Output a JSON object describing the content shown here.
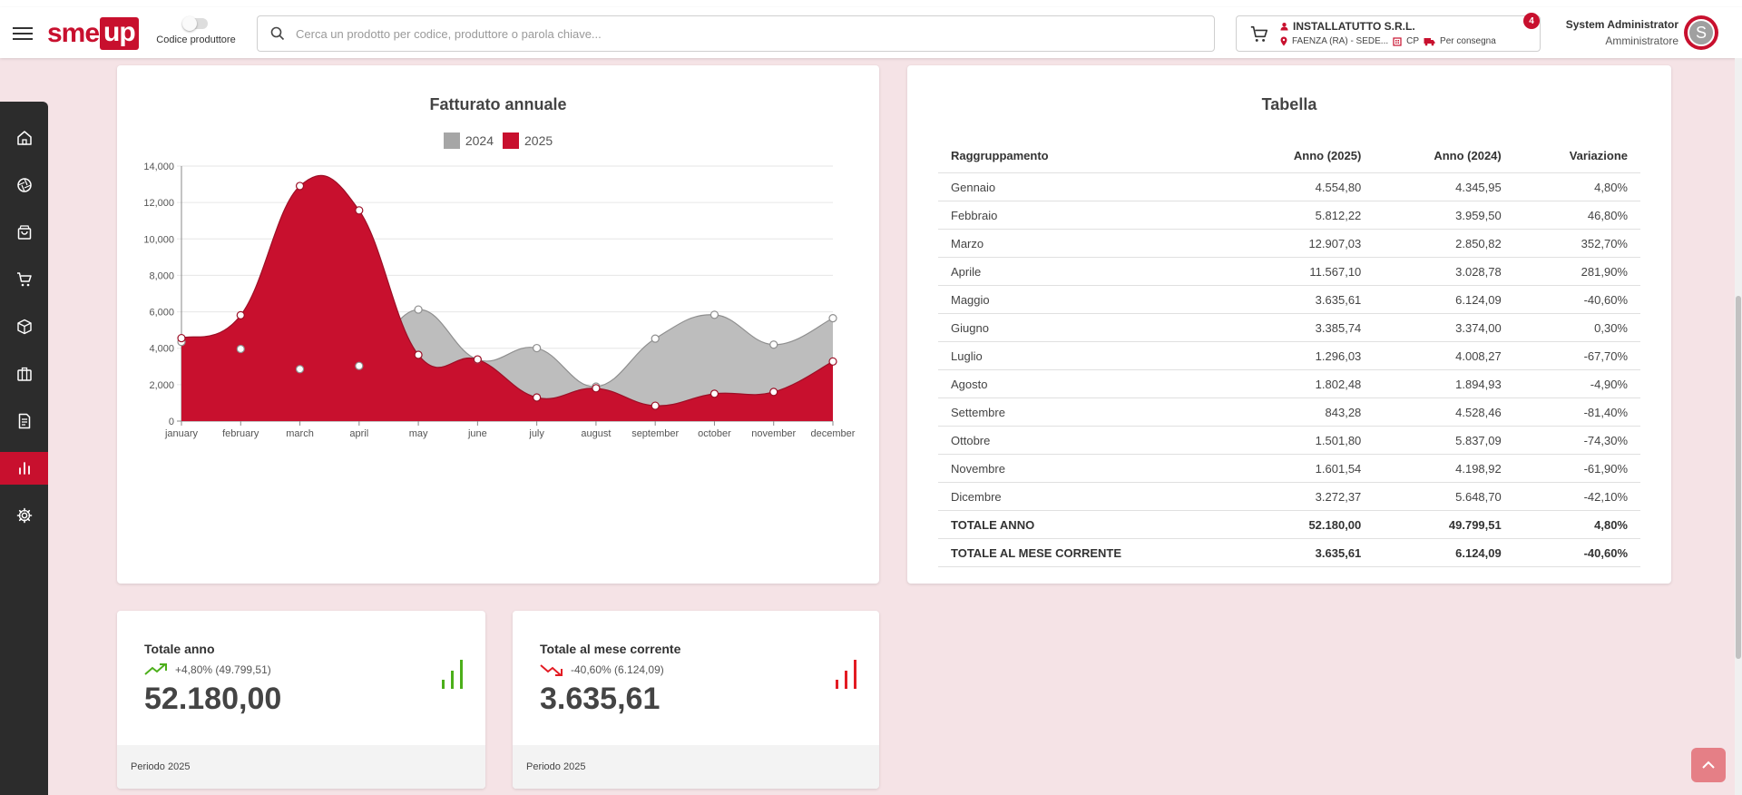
{
  "header": {
    "logo_left": "sme",
    "logo_right": "up",
    "toggle_label": "Codice produttore",
    "search_placeholder": "Cerca un prodotto per codice, produttore o parola chiave...",
    "customer_name": "INSTALLATUTTO S.R.L.",
    "customer_location": "FAENZA (RA) - SEDE...",
    "customer_code": "CP",
    "delivery_label": "Per consegna",
    "cart_count": "4",
    "user_name": "System Administrator",
    "user_role": "Amministratore",
    "avatar_letter": "S"
  },
  "sidebar": {
    "items": [
      "home-icon",
      "aperture-icon",
      "bag-icon",
      "cart-icon",
      "box-icon",
      "briefcase-icon",
      "document-icon",
      "chart-icon",
      "gear-icon"
    ],
    "active": "chart-icon"
  },
  "chart_card": {
    "title": "Fatturato annuale"
  },
  "chart_data": {
    "type": "area",
    "title": "Fatturato annuale",
    "x": [
      "january",
      "february",
      "march",
      "april",
      "may",
      "june",
      "july",
      "august",
      "september",
      "october",
      "november",
      "december"
    ],
    "series": [
      {
        "name": "2024",
        "color": "#a6a6a6",
        "values": [
          4345.95,
          3959.5,
          2850.82,
          3028.78,
          6124.09,
          3374.0,
          4008.27,
          1894.93,
          4528.46,
          5837.09,
          4198.92,
          5648.7
        ]
      },
      {
        "name": "2025",
        "color": "#c8102e",
        "values": [
          4554.8,
          5812.22,
          12907.03,
          11567.1,
          3635.61,
          3385.74,
          1296.03,
          1802.48,
          843.28,
          1501.8,
          1601.54,
          3272.37
        ]
      }
    ],
    "yticks": [
      "0",
      "2,000",
      "4,000",
      "6,000",
      "8,000",
      "10,000",
      "12,000",
      "14,000"
    ],
    "ylim": [
      0,
      14000
    ],
    "grid": true,
    "legend": "top-center"
  },
  "table_card": {
    "title": "Tabella",
    "headers": [
      "Raggruppamento",
      "Anno (2025)",
      "Anno (2024)",
      "Variazione"
    ],
    "rows": [
      [
        "Gennaio",
        "4.554,80",
        "4.345,95",
        "4,80%"
      ],
      [
        "Febbraio",
        "5.812,22",
        "3.959,50",
        "46,80%"
      ],
      [
        "Marzo",
        "12.907,03",
        "2.850,82",
        "352,70%"
      ],
      [
        "Aprile",
        "11.567,10",
        "3.028,78",
        "281,90%"
      ],
      [
        "Maggio",
        "3.635,61",
        "6.124,09",
        "-40,60%"
      ],
      [
        "Giugno",
        "3.385,74",
        "3.374,00",
        "0,30%"
      ],
      [
        "Luglio",
        "1.296,03",
        "4.008,27",
        "-67,70%"
      ],
      [
        "Agosto",
        "1.802,48",
        "1.894,93",
        "-4,90%"
      ],
      [
        "Settembre",
        "843,28",
        "4.528,46",
        "-81,40%"
      ],
      [
        "Ottobre",
        "1.501,80",
        "5.837,09",
        "-74,30%"
      ],
      [
        "Novembre",
        "1.601,54",
        "4.198,92",
        "-61,90%"
      ],
      [
        "Dicembre",
        "3.272,37",
        "5.648,70",
        "-42,10%"
      ]
    ],
    "totals": [
      [
        "TOTALE ANNO",
        "52.180,00",
        "49.799,51",
        "4,80%"
      ],
      [
        "TOTALE AL MESE CORRENTE",
        "3.635,61",
        "6.124,09",
        "-40,60%"
      ]
    ]
  },
  "kpi": [
    {
      "title": "Totale anno",
      "trend": "+4,80% (49.799,51)",
      "value": "52.180,00",
      "footer": "Periodo 2025",
      "color": "#4caf1a"
    },
    {
      "title": "Totale al mese corrente",
      "trend": "-40,60% (6.124,09)",
      "value": "3.635,61",
      "footer": "Periodo 2025",
      "color": "#e31b23"
    }
  ]
}
